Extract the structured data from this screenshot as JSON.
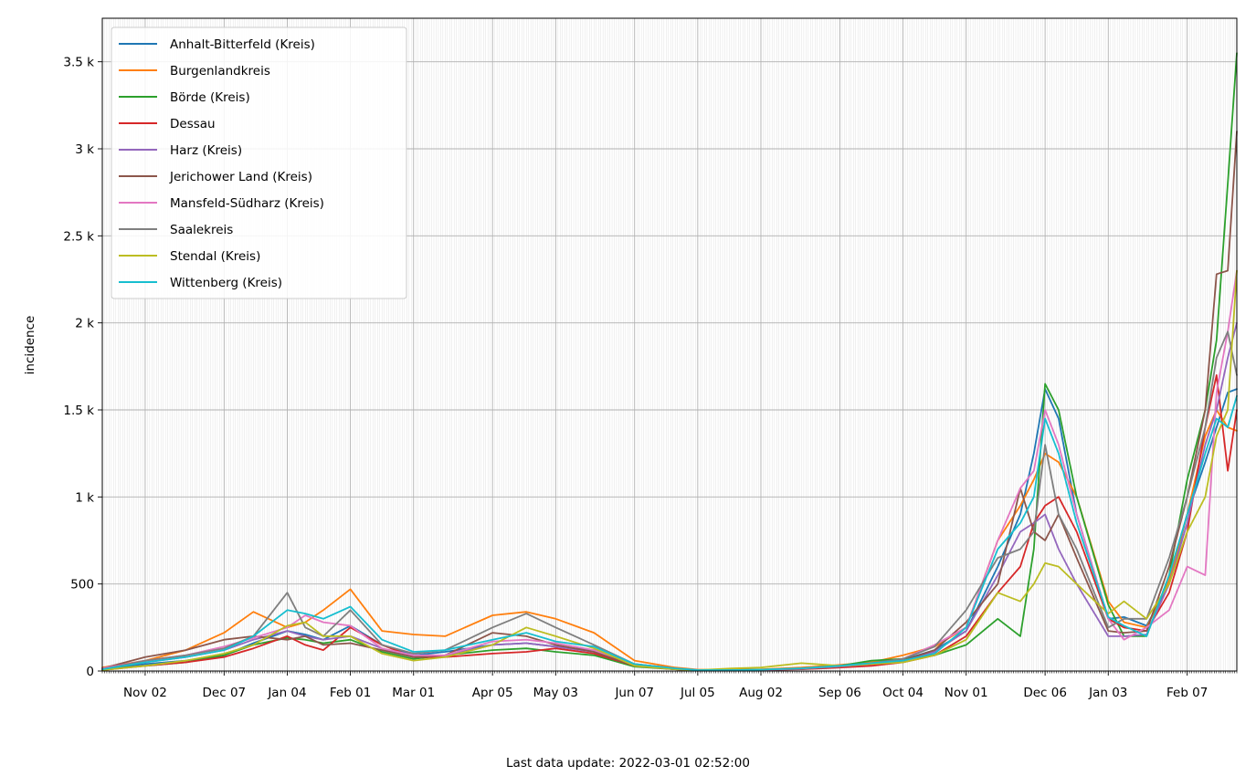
{
  "footer": {
    "prefix": "Last data update: ",
    "timestamp": "2022-03-01 02:52:00"
  },
  "chart_data": {
    "type": "line",
    "title": "",
    "xlabel": "",
    "ylabel": "incidence",
    "xlim": [
      "2020-10-14",
      "2022-03-01"
    ],
    "ylim": [
      0,
      3750
    ],
    "y_ticks": [
      0,
      500,
      1000,
      1500,
      2000,
      2500,
      3000,
      3500
    ],
    "y_tick_labels": [
      "0",
      "500",
      "1 k",
      "1.5 k",
      "2 k",
      "2.5 k",
      "3 k",
      "3.5 k"
    ],
    "x_ticks": [
      "2020-11-02",
      "2020-12-07",
      "2021-01-04",
      "2021-02-01",
      "2021-03-01",
      "2021-04-05",
      "2021-05-03",
      "2021-06-07",
      "2021-07-05",
      "2021-08-02",
      "2021-09-06",
      "2021-10-04",
      "2021-11-01",
      "2021-12-06",
      "2022-01-03",
      "2022-02-07"
    ],
    "x_tick_labels": [
      "Nov 02",
      "Dec 07",
      "Jan 04",
      "Feb 01",
      "Mar 01",
      "Apr 05",
      "May 03",
      "Jun 07",
      "Jul 05",
      "Aug 02",
      "Sep 06",
      "Oct 04",
      "Nov 01",
      "Dec 06",
      "Jan 03",
      "Feb 07"
    ],
    "grid": true,
    "minor_grid": "daily",
    "legend_position": "top-left",
    "x": [
      "2020-10-14",
      "2020-11-02",
      "2020-11-20",
      "2020-12-07",
      "2020-12-20",
      "2021-01-04",
      "2021-01-12",
      "2021-01-20",
      "2021-02-01",
      "2021-02-15",
      "2021-03-01",
      "2021-03-15",
      "2021-04-05",
      "2021-04-20",
      "2021-05-03",
      "2021-05-20",
      "2021-06-07",
      "2021-06-25",
      "2021-07-05",
      "2021-07-20",
      "2021-08-02",
      "2021-08-20",
      "2021-09-06",
      "2021-09-20",
      "2021-10-04",
      "2021-10-18",
      "2021-11-01",
      "2021-11-15",
      "2021-11-25",
      "2021-12-01",
      "2021-12-06",
      "2021-12-12",
      "2021-12-20",
      "2022-01-03",
      "2022-01-10",
      "2022-01-20",
      "2022-01-30",
      "2022-02-07",
      "2022-02-15",
      "2022-02-20",
      "2022-02-25",
      "2022-03-01"
    ],
    "series": [
      {
        "name": "Anhalt-Bitterfeld (Kreis)",
        "color": "#1f77b4",
        "values": [
          15,
          40,
          60,
          90,
          160,
          230,
          210,
          180,
          260,
          150,
          90,
          110,
          150,
          160,
          140,
          120,
          40,
          15,
          5,
          5,
          8,
          15,
          30,
          50,
          65,
          120,
          230,
          600,
          900,
          1250,
          1620,
          1450,
          900,
          300,
          310,
          260,
          500,
          900,
          1200,
          1400,
          1600,
          1620
        ]
      },
      {
        "name": "Burgenlandkreis",
        "color": "#ff7f0e",
        "values": [
          20,
          60,
          120,
          220,
          340,
          250,
          280,
          350,
          470,
          230,
          210,
          200,
          320,
          340,
          300,
          220,
          60,
          20,
          8,
          8,
          10,
          20,
          35,
          50,
          90,
          140,
          250,
          750,
          950,
          1100,
          1250,
          1200,
          1000,
          400,
          280,
          250,
          520,
          900,
          1350,
          1500,
          1400,
          1380
        ]
      },
      {
        "name": "Börde (Kreis)",
        "color": "#2ca02c",
        "values": [
          10,
          30,
          50,
          90,
          150,
          190,
          180,
          160,
          180,
          110,
          70,
          90,
          120,
          130,
          110,
          90,
          25,
          10,
          5,
          5,
          8,
          15,
          30,
          60,
          70,
          90,
          150,
          300,
          200,
          700,
          1650,
          1500,
          1000,
          380,
          200,
          200,
          550,
          1100,
          1500,
          1900,
          2800,
          3550
        ]
      },
      {
        "name": "Dessau",
        "color": "#d62728",
        "values": [
          5,
          30,
          50,
          80,
          130,
          200,
          150,
          120,
          250,
          150,
          80,
          80,
          100,
          110,
          130,
          100,
          30,
          10,
          3,
          3,
          5,
          10,
          20,
          30,
          50,
          90,
          200,
          450,
          600,
          850,
          950,
          1000,
          800,
          300,
          250,
          230,
          450,
          800,
          1400,
          1700,
          1150,
          1500
        ]
      },
      {
        "name": "Harz (Kreis)",
        "color": "#9467bd",
        "values": [
          10,
          50,
          80,
          120,
          180,
          230,
          200,
          180,
          200,
          130,
          80,
          90,
          150,
          160,
          140,
          110,
          35,
          10,
          4,
          4,
          6,
          12,
          25,
          40,
          60,
          110,
          230,
          550,
          800,
          850,
          900,
          700,
          500,
          200,
          200,
          210,
          500,
          850,
          1300,
          1500,
          1800,
          2000
        ]
      },
      {
        "name": "Jerichower Land (Kreis)",
        "color": "#8c564b",
        "values": [
          15,
          80,
          120,
          180,
          200,
          180,
          200,
          150,
          160,
          120,
          80,
          90,
          220,
          200,
          150,
          110,
          30,
          10,
          4,
          4,
          6,
          12,
          25,
          40,
          60,
          120,
          280,
          500,
          1050,
          800,
          750,
          900,
          650,
          230,
          220,
          230,
          600,
          1000,
          1500,
          2280,
          2300,
          3100
        ]
      },
      {
        "name": "Mansfeld-Südharz (Kreis)",
        "color": "#e377c2",
        "values": [
          15,
          60,
          90,
          140,
          190,
          250,
          320,
          280,
          260,
          130,
          90,
          90,
          170,
          180,
          160,
          120,
          40,
          15,
          5,
          5,
          7,
          14,
          28,
          40,
          70,
          150,
          250,
          750,
          1050,
          1150,
          1500,
          1300,
          900,
          300,
          180,
          250,
          350,
          600,
          550,
          1600,
          1950,
          2300
        ]
      },
      {
        "name": "Saalekreis",
        "color": "#7f7f7f",
        "values": [
          10,
          60,
          90,
          130,
          200,
          450,
          250,
          200,
          350,
          150,
          100,
          120,
          250,
          330,
          250,
          150,
          40,
          15,
          5,
          5,
          8,
          16,
          30,
          45,
          70,
          140,
          350,
          650,
          700,
          800,
          1300,
          900,
          700,
          250,
          300,
          300,
          650,
          1000,
          1400,
          1800,
          1950,
          1700
        ]
      },
      {
        "name": "Stendal (Kreis)",
        "color": "#bcbd22",
        "values": [
          5,
          30,
          60,
          100,
          150,
          260,
          280,
          200,
          200,
          100,
          60,
          80,
          150,
          250,
          200,
          130,
          30,
          10,
          5,
          15,
          20,
          45,
          30,
          40,
          50,
          90,
          180,
          450,
          400,
          500,
          620,
          600,
          500,
          330,
          400,
          300,
          500,
          800,
          1000,
          1350,
          1500,
          2300
        ]
      },
      {
        "name": "Wittenberg (Kreis)",
        "color": "#17becf",
        "values": [
          10,
          50,
          80,
          120,
          200,
          350,
          330,
          300,
          370,
          180,
          110,
          120,
          180,
          220,
          170,
          140,
          40,
          15,
          5,
          5,
          8,
          15,
          30,
          45,
          60,
          100,
          250,
          700,
          850,
          1000,
          1450,
          1250,
          850,
          310,
          260,
          200,
          550,
          900,
          1250,
          1450,
          1400,
          1580
        ]
      }
    ]
  }
}
